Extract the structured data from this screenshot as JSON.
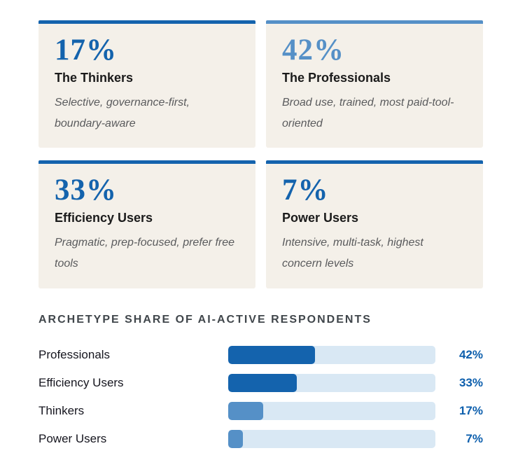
{
  "colors": {
    "dark_blue": "#1463ad",
    "medium_blue": "#5590c7",
    "bar_track": "#d9e8f4",
    "card_background": "#f4f0e9",
    "heading_gray": "#40464b",
    "description_gray": "#5a5b5d",
    "value_text_blue": "#0d5fad"
  },
  "cards": [
    {
      "value": "17%",
      "title": "The Thinkers",
      "description": "Selective, governance-first, boundary-aware",
      "accent_color": "#1463ad"
    },
    {
      "value": "42%",
      "title": "The Professionals",
      "description": "Broad use, trained, most paid-tool-oriented",
      "accent_color": "#5590c7"
    },
    {
      "value": "33%",
      "title": "Efficiency Users",
      "description": "Pragmatic, prep-focused, prefer free tools",
      "accent_color": "#1463ad"
    },
    {
      "value": "7%",
      "title": "Power Users",
      "description": "Intensive, multi-task, highest concern levels",
      "accent_color": "#1463ad"
    }
  ],
  "chart": {
    "title": "ARCHETYPE SHARE OF AI-ACTIVE RESPONDENTS",
    "rows": [
      {
        "label": "Professionals",
        "display": "42%",
        "fill_color": "#1463ad"
      },
      {
        "label": "Efficiency Users",
        "display": "33%",
        "fill_color": "#1463ad"
      },
      {
        "label": "Thinkers",
        "display": "17%",
        "fill_color": "#5590c7"
      },
      {
        "label": "Power Users",
        "display": "7%",
        "fill_color": "#5590c7"
      }
    ]
  },
  "chart_data": {
    "type": "bar",
    "orientation": "horizontal",
    "title": "ARCHETYPE SHARE OF AI-ACTIVE RESPONDENTS",
    "categories": [
      "Professionals",
      "Efficiency Users",
      "Thinkers",
      "Power Users"
    ],
    "values": [
      42,
      33,
      17,
      7
    ],
    "value_labels": [
      "42%",
      "33%",
      "17%",
      "7%"
    ],
    "xlabel": "",
    "ylabel": "",
    "xlim": [
      0,
      100
    ],
    "grid": false,
    "legend": false,
    "bar_colors": [
      "#1463ad",
      "#1463ad",
      "#5590c7",
      "#5590c7"
    ],
    "track_color": "#d9e8f4"
  }
}
